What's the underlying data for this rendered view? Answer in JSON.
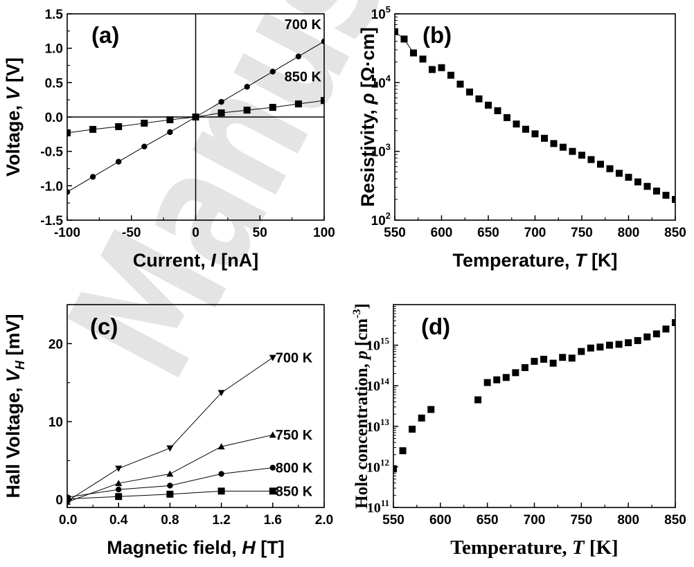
{
  "watermark": "Manuscript",
  "chart_data": [
    {
      "id": "a",
      "type": "line",
      "panel_label": "(a)",
      "xlabel": "Current, ",
      "xlabel_var": "I",
      "xlabel_unit": " [nA]",
      "ylabel": "Voltage, ",
      "ylabel_var": "V",
      "ylabel_unit": " [V]",
      "xlim": [
        -100,
        100
      ],
      "ylim": [
        -1.5,
        1.5
      ],
      "xticks": [
        -100,
        -50,
        0,
        50,
        100
      ],
      "xtick_labels": [
        "-100",
        "-50",
        "0",
        "50",
        "100"
      ],
      "yticks": [
        -1.5,
        -1.0,
        -0.5,
        0.0,
        0.5,
        1.0,
        1.5
      ],
      "ytick_labels": [
        "-1.5",
        "-1.0",
        "-0.5",
        "0.0",
        "0.5",
        "1.0",
        "1.5"
      ],
      "zero_lines": true,
      "series": [
        {
          "name": "700 K",
          "marker": "circle",
          "x": [
            -100,
            -80,
            -60,
            -40,
            -20,
            0,
            20,
            40,
            60,
            80,
            100
          ],
          "y": [
            -1.09,
            -0.87,
            -0.65,
            -0.43,
            -0.22,
            0.0,
            0.22,
            0.44,
            0.66,
            0.88,
            1.1
          ]
        },
        {
          "name": "850 K",
          "marker": "square",
          "x": [
            -100,
            -80,
            -60,
            -40,
            -20,
            0,
            20,
            40,
            60,
            80,
            100
          ],
          "y": [
            -0.23,
            -0.18,
            -0.14,
            -0.09,
            -0.04,
            0.0,
            0.06,
            0.1,
            0.14,
            0.19,
            0.24
          ]
        }
      ]
    },
    {
      "id": "b",
      "type": "scatter",
      "panel_label": "(b)",
      "xlabel": "Temperature, ",
      "xlabel_var": "T",
      "xlabel_unit": " [K]",
      "ylabel": "Resistivity, ",
      "ylabel_var": "ρ",
      "ylabel_unit": " [Ω·cm]",
      "xlim": [
        550,
        850
      ],
      "ylim": [
        100,
        100000
      ],
      "yscale": "log",
      "xticks": [
        550,
        600,
        650,
        700,
        750,
        800,
        850
      ],
      "xtick_labels": [
        "550",
        "600",
        "650",
        "700",
        "750",
        "800",
        "850"
      ],
      "yticks": [
        100,
        1000,
        10000,
        100000
      ],
      "ytick_base": "10",
      "ytick_exponents": [
        "2",
        "3",
        "4",
        "5"
      ],
      "series": [
        {
          "name": "",
          "marker": "square",
          "connect_first": 3,
          "x": [
            550,
            560,
            570,
            580,
            590,
            600,
            610,
            620,
            630,
            640,
            650,
            660,
            670,
            680,
            690,
            700,
            710,
            720,
            730,
            740,
            750,
            760,
            770,
            780,
            790,
            800,
            810,
            820,
            830,
            840,
            850
          ],
          "y": [
            55000,
            43000,
            27000,
            22000,
            15500,
            16500,
            12800,
            9500,
            7300,
            5800,
            4700,
            3900,
            3100,
            2500,
            2100,
            1800,
            1550,
            1300,
            1150,
            1000,
            880,
            760,
            650,
            560,
            480,
            420,
            360,
            310,
            265,
            230,
            200
          ]
        }
      ]
    },
    {
      "id": "c",
      "type": "line",
      "panel_label": "(c)",
      "xlabel": "Magnetic field, ",
      "xlabel_var": "H",
      "xlabel_unit": " [T]",
      "ylabel": "Hall Voltage, ",
      "ylabel_var": "V",
      "ylabel_sub": "H",
      "ylabel_unit": " [mV]",
      "xlim": [
        0.0,
        2.0
      ],
      "ylim": [
        -1,
        25
      ],
      "xticks": [
        0.0,
        0.4,
        0.8,
        1.2,
        1.6,
        2.0
      ],
      "xtick_labels": [
        "0.0",
        "0.4",
        "0.8",
        "1.2",
        "1.6",
        "2.0"
      ],
      "yticks": [
        0,
        10,
        20
      ],
      "ytick_labels": [
        "0",
        "10",
        "20"
      ],
      "series": [
        {
          "name": "700 K",
          "marker": "triangle-down",
          "x": [
            0.0,
            0.4,
            0.8,
            1.2,
            1.6
          ],
          "y": [
            -0.2,
            4.0,
            6.6,
            13.7,
            18.2
          ]
        },
        {
          "name": "750 K",
          "marker": "triangle-up",
          "x": [
            0.0,
            0.4,
            0.8,
            1.2,
            1.6
          ],
          "y": [
            -0.3,
            2.1,
            3.3,
            6.8,
            8.3
          ]
        },
        {
          "name": "800 K",
          "marker": "circle",
          "x": [
            0.0,
            0.4,
            0.8,
            1.2,
            1.6
          ],
          "y": [
            0.3,
            1.3,
            1.8,
            3.3,
            4.1
          ]
        },
        {
          "name": "850 K",
          "marker": "square",
          "x": [
            0.0,
            0.4,
            0.8,
            1.2,
            1.6
          ],
          "y": [
            0.1,
            0.4,
            0.7,
            1.1,
            1.1
          ]
        }
      ]
    },
    {
      "id": "d",
      "type": "scatter",
      "panel_label": "(d)",
      "xlabel": "Temperature, ",
      "xlabel_var": "T",
      "xlabel_unit": " [K]",
      "ylabel": "Hole concentration, ",
      "ylabel_var": "p",
      "ylabel_unit": " [cm",
      "ylabel_sup": "-3",
      "ylabel_close": "]",
      "xlim": [
        550,
        850
      ],
      "ylim": [
        100000000000,
        10000000000000000
      ],
      "yscale": "log",
      "xticks": [
        550,
        600,
        650,
        700,
        750,
        800,
        850
      ],
      "xtick_labels": [
        "550",
        "600",
        "650",
        "700",
        "750",
        "800",
        "850"
      ],
      "yticks": [
        100000000000,
        1000000000000,
        10000000000000,
        100000000000000,
        1000000000000000
      ],
      "ytick_base": "10",
      "ytick_exponents": [
        "11",
        "12",
        "13",
        "14",
        "15"
      ],
      "series": [
        {
          "name": "",
          "marker": "square",
          "x": [
            550,
            560,
            570,
            580,
            590,
            640,
            650,
            660,
            670,
            680,
            690,
            700,
            710,
            720,
            730,
            740,
            750,
            760,
            770,
            780,
            790,
            800,
            810,
            820,
            830,
            840,
            850
          ],
          "y": [
            900000000000,
            2500000000000,
            8500000000000,
            16000000000000,
            26000000000000,
            45000000000000,
            120000000000000,
            140000000000000,
            160000000000000,
            210000000000000,
            280000000000000,
            400000000000000,
            450000000000000,
            360000000000000,
            500000000000000,
            480000000000000,
            700000000000000,
            850000000000000,
            900000000000000,
            1000000000000000,
            1050000000000000,
            1150000000000000,
            1300000000000000,
            1600000000000000,
            1900000000000000,
            2500000000000000,
            3600000000000000
          ]
        }
      ]
    }
  ]
}
